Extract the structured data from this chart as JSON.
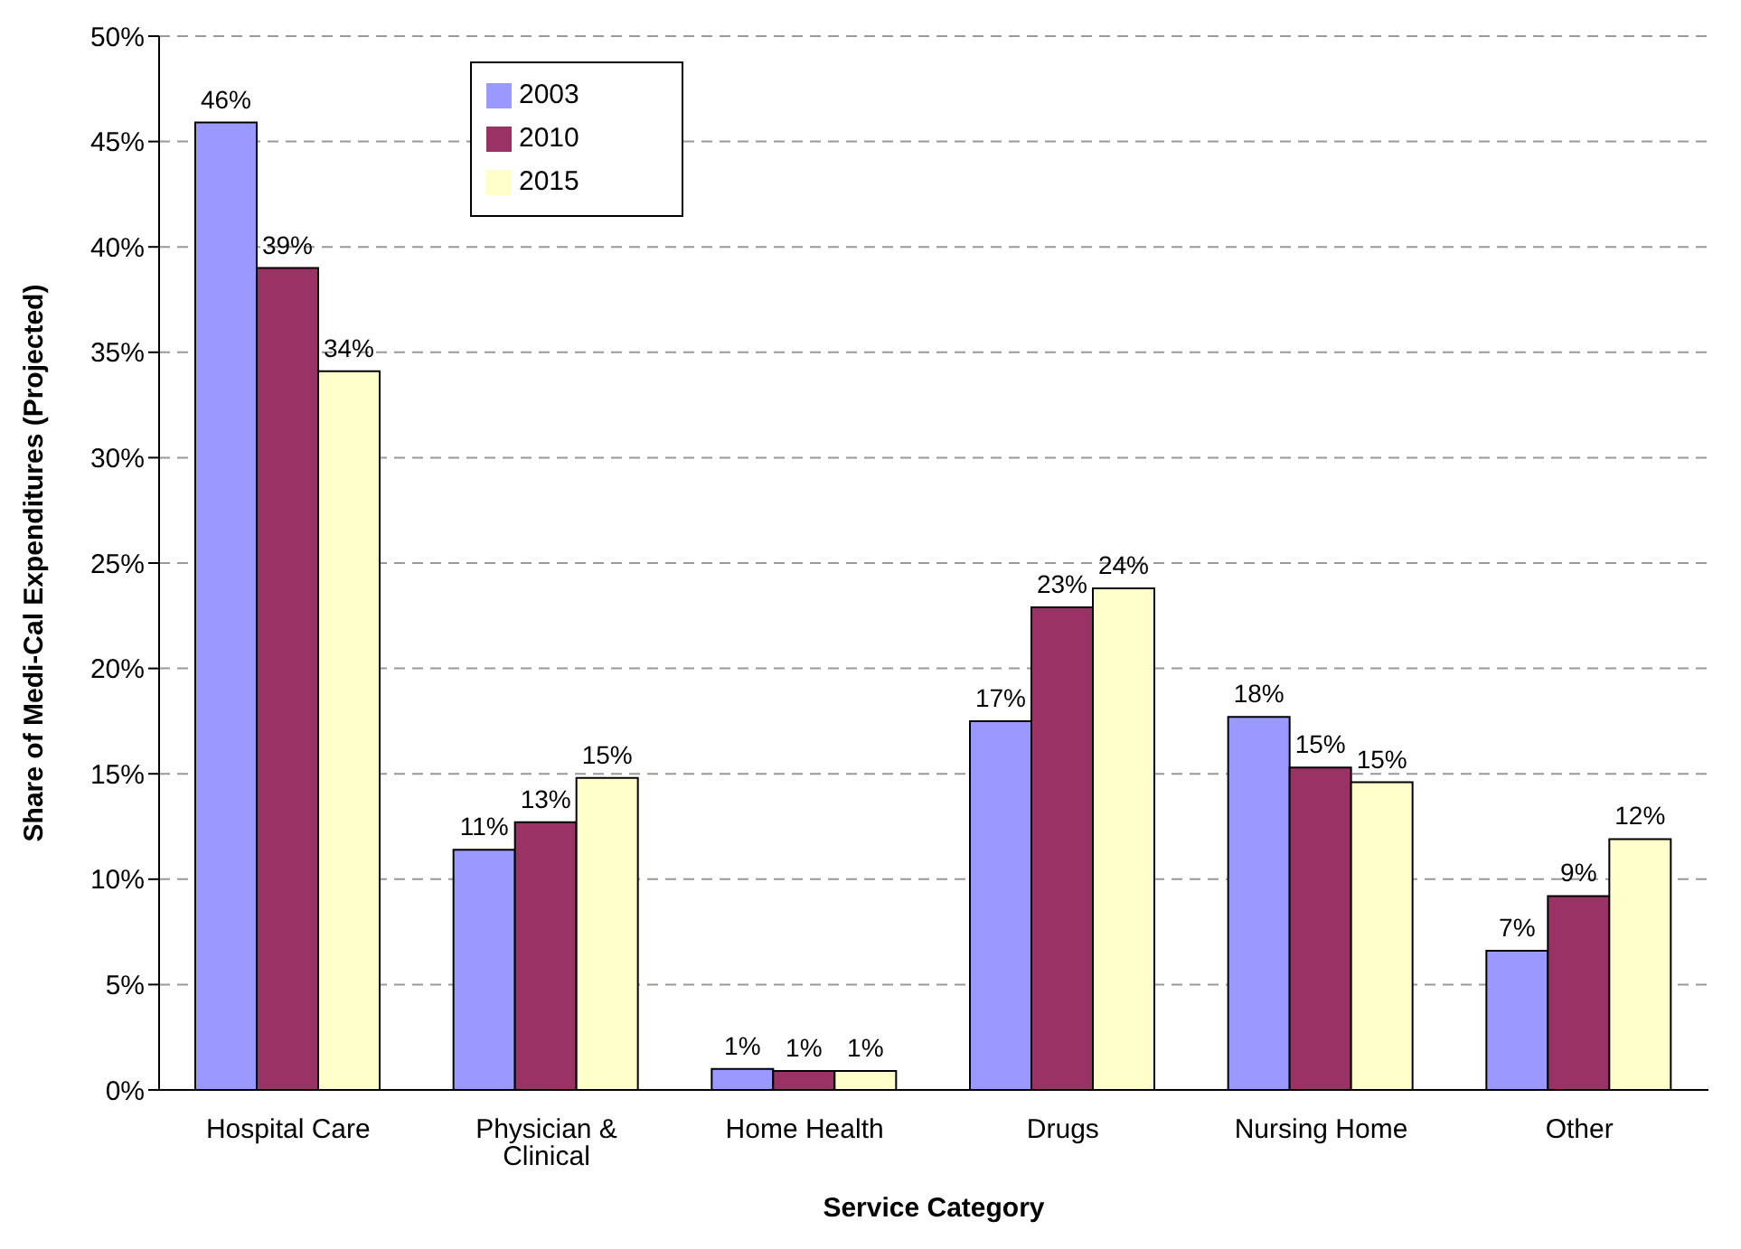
{
  "chart_data": {
    "type": "bar",
    "xlabel": "Service Category",
    "ylabel": "Share of Medi-Cal Expenditures (Projected)",
    "categories": [
      "Hospital Care",
      "Physician & Clinical",
      "Home Health",
      "Drugs",
      "Nursing Home",
      "Other"
    ],
    "series": [
      {
        "name": "2003",
        "color": "#9999ff",
        "values": [
          45.9,
          11.4,
          1.0,
          17.5,
          17.7,
          6.6
        ],
        "value_labels": [
          "46%",
          "11%",
          "1%",
          "17%",
          "18%",
          "7%"
        ]
      },
      {
        "name": "2010",
        "color": "#993366",
        "values": [
          39.0,
          12.7,
          0.9,
          22.9,
          15.3,
          9.2
        ],
        "value_labels": [
          "39%",
          "13%",
          "1%",
          "23%",
          "15%",
          "9%"
        ]
      },
      {
        "name": "2015",
        "color": "#ffffcc",
        "values": [
          34.1,
          14.8,
          0.9,
          23.8,
          14.6,
          11.9
        ],
        "value_labels": [
          "34%",
          "15%",
          "1%",
          "24%",
          "15%",
          "12%"
        ]
      }
    ],
    "ylim": [
      0,
      50
    ],
    "yticks": [
      {
        "value": 0,
        "label": "0%"
      },
      {
        "value": 5,
        "label": "5%"
      },
      {
        "value": 10,
        "label": "10%"
      },
      {
        "value": 15,
        "label": "15%"
      },
      {
        "value": 20,
        "label": "20%"
      },
      {
        "value": 25,
        "label": "25%"
      },
      {
        "value": 30,
        "label": "30%"
      },
      {
        "value": 35,
        "label": "35%"
      },
      {
        "value": 40,
        "label": "40%"
      },
      {
        "value": 45,
        "label": "45%"
      },
      {
        "value": 50,
        "label": "50%"
      }
    ],
    "grid": "y",
    "legend": "top left"
  }
}
